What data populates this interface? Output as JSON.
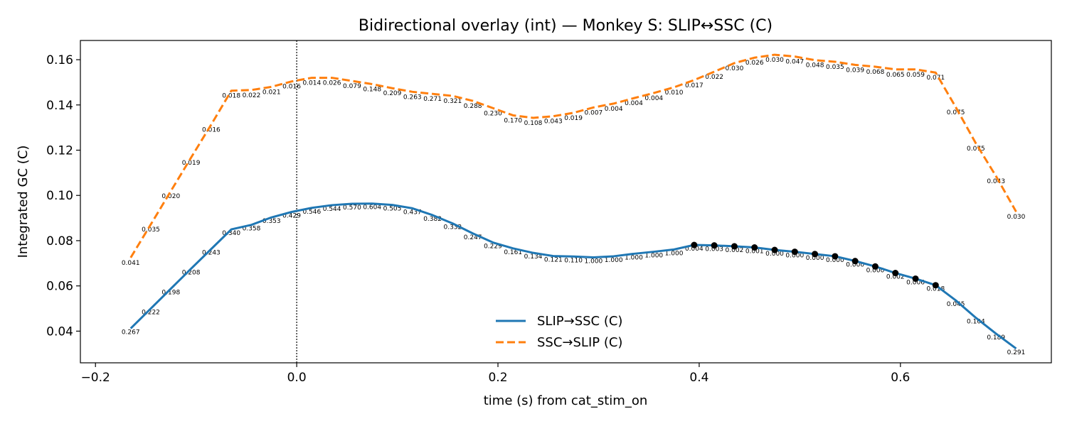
{
  "chart_data": {
    "type": "line",
    "title": "Bidirectional overlay (int) — Monkey S: SLIP↔SSC (C)",
    "xlabel": "time (s) from cat_stim_on",
    "ylabel": "Integrated GC (C)",
    "xlim": [
      -0.215,
      0.75
    ],
    "ylim": [
      0.026,
      0.1685
    ],
    "xticks": [
      -0.2,
      0.0,
      0.2,
      0.4,
      0.6
    ],
    "xtick_labels": [
      "−0.2",
      "0.0",
      "0.2",
      "0.4",
      "0.6"
    ],
    "yticks": [
      0.04,
      0.06,
      0.08,
      0.1,
      0.12,
      0.14,
      0.16
    ],
    "ytick_labels": [
      "0.04",
      "0.06",
      "0.08",
      "0.10",
      "0.12",
      "0.14",
      "0.16"
    ],
    "vline_x": 0.0,
    "grid": false,
    "legend_position": "bottom-center",
    "x": [
      -0.165,
      -0.145,
      -0.125,
      -0.105,
      -0.085,
      -0.065,
      -0.045,
      -0.025,
      -0.005,
      0.015,
      0.035,
      0.055,
      0.075,
      0.095,
      0.115,
      0.135,
      0.155,
      0.175,
      0.195,
      0.215,
      0.235,
      0.255,
      0.275,
      0.295,
      0.315,
      0.335,
      0.355,
      0.375,
      0.395,
      0.415,
      0.435,
      0.455,
      0.475,
      0.495,
      0.515,
      0.535,
      0.555,
      0.575,
      0.595,
      0.615,
      0.635,
      0.655,
      0.675,
      0.695,
      0.715
    ],
    "series": [
      {
        "name": "SLIP→SSC (C)",
        "color": "#1f77b4",
        "linestyle": "solid",
        "values": [
          0.0412,
          0.05,
          0.0588,
          0.0676,
          0.0763,
          0.085,
          0.087,
          0.0903,
          0.0927,
          0.0945,
          0.0957,
          0.0963,
          0.0964,
          0.0958,
          0.0943,
          0.0913,
          0.0876,
          0.0832,
          0.0792,
          0.0766,
          0.0746,
          0.0732,
          0.073,
          0.0726,
          0.0731,
          0.0742,
          0.0751,
          0.0761,
          0.0781,
          0.0779,
          0.0775,
          0.077,
          0.0759,
          0.0751,
          0.0741,
          0.0731,
          0.071,
          0.0686,
          0.0657,
          0.0632,
          0.0603,
          0.0536,
          0.0459,
          0.0389,
          0.0323
        ],
        "pvalues": [
          "0.267",
          "0.222",
          "0.198",
          "0.208",
          "0.243",
          "0.340",
          "0.358",
          "0.353",
          "0.429",
          "0.546",
          "0.544",
          "0.570",
          "0.604",
          "0.505",
          "0.437",
          "0.382",
          "0.332",
          "0.247",
          "0.229",
          "0.161",
          "0.134",
          "0.121",
          "0.110",
          "1.000",
          "1.000",
          "1.000",
          "1.000",
          "1.000",
          "0.004",
          "0.003",
          "0.002",
          "0.001",
          "0.000",
          "0.000",
          "0.000",
          "0.000",
          "0.000",
          "0.000",
          "0.002",
          "0.006",
          "0.018",
          "0.045",
          "0.104",
          "0.189",
          "0.291"
        ],
        "significant_markers_x": [
          0.395,
          0.415,
          0.435,
          0.455,
          0.475,
          0.495,
          0.515,
          0.535,
          0.555,
          0.575,
          0.595,
          0.615,
          0.635
        ]
      },
      {
        "name": "SSC→SLIP (C)",
        "color": "#ff7f0e",
        "linestyle": "dashed",
        "values": [
          0.0725,
          0.0872,
          0.102,
          0.1167,
          0.1313,
          0.1463,
          0.1466,
          0.148,
          0.1504,
          0.152,
          0.152,
          0.1506,
          0.1492,
          0.1474,
          0.1458,
          0.1449,
          0.144,
          0.1418,
          0.1386,
          0.1354,
          0.1343,
          0.135,
          0.1365,
          0.1389,
          0.1406,
          0.143,
          0.1453,
          0.1478,
          0.151,
          0.1547,
          0.1585,
          0.1609,
          0.1622,
          0.1614,
          0.1598,
          0.1591,
          0.1577,
          0.1569,
          0.1557,
          0.1557,
          0.1543,
          0.139,
          0.123,
          0.1085,
          0.0928
        ],
        "pvalues": [
          "0.041",
          "0.035",
          "0.020",
          "0.019",
          "0.016",
          "0.018",
          "0.022",
          "0.021",
          "0.016",
          "0.014",
          "0.026",
          "0.079",
          "0.148",
          "0.209",
          "0.263",
          "0.271",
          "0.321",
          "0.288",
          "0.230",
          "0.170",
          "0.108",
          "0.043",
          "0.019",
          "0.007",
          "0.004",
          "0.004",
          "0.004",
          "0.010",
          "0.017",
          "0.022",
          "0.030",
          "0.026",
          "0.030",
          "0.047",
          "0.048",
          "0.035",
          "0.039",
          "0.068",
          "0.065",
          "0.059",
          "0.071",
          "0.075",
          "0.075",
          "0.043",
          "0.030"
        ]
      }
    ]
  }
}
